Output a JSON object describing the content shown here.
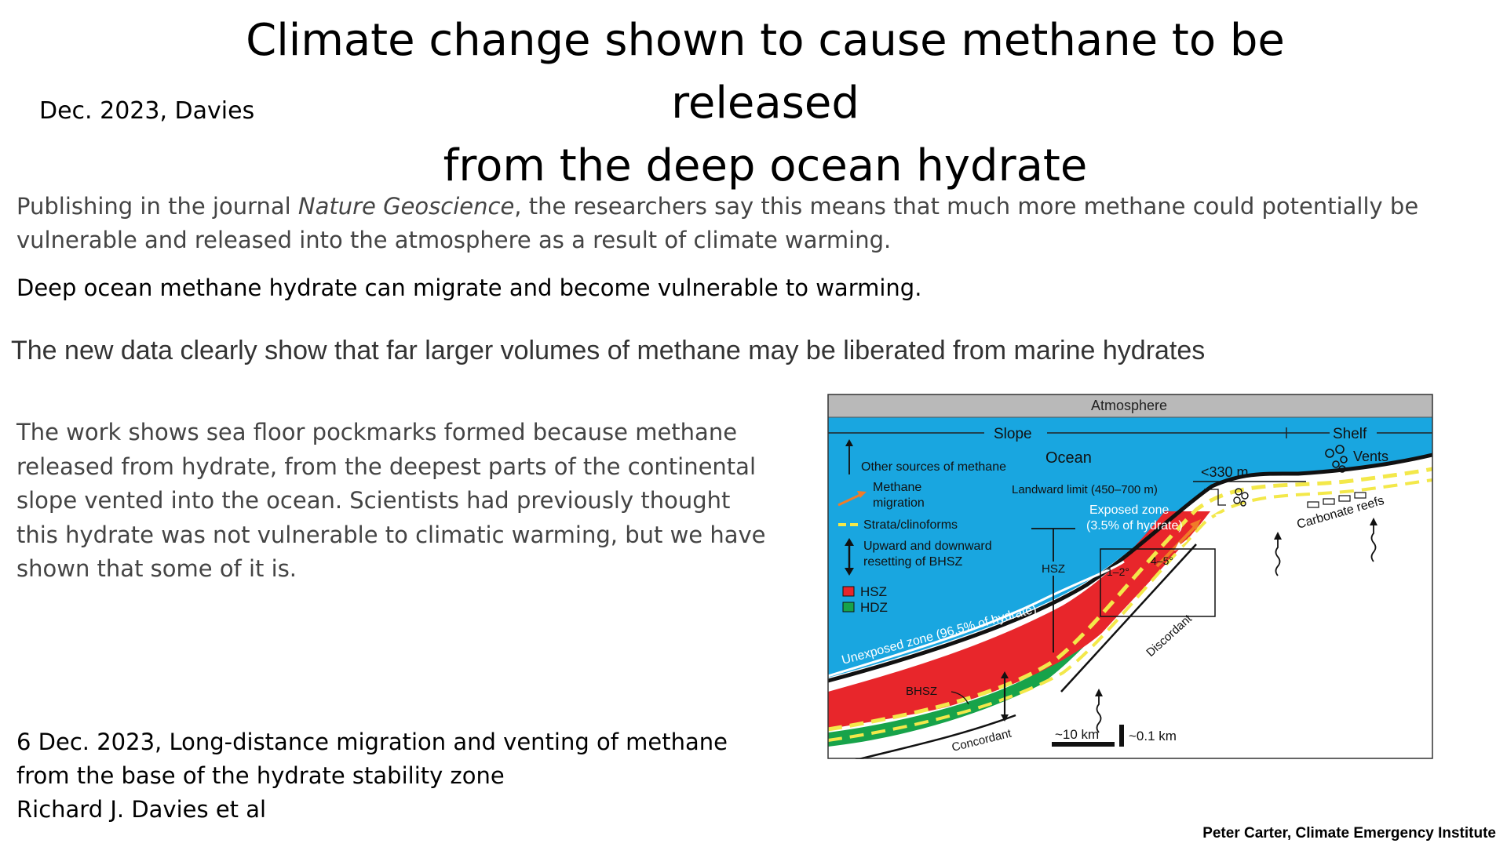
{
  "slide": {
    "title_line1": "Climate change shown to cause methane to be released",
    "title_line2": "from the deep ocean hydrate",
    "byline": "Dec. 2023, Davies",
    "para1_prefix": "Publishing in the journal ",
    "para1_journal": "Nature Geoscience",
    "para1_suffix": ", the researchers say this means that much more methane could potentially be vulnerable and released into the atmosphere as a result of climate warming.",
    "para2": "Deep ocean methane hydrate can migrate and become vulnerable to warming.",
    "para3": "The new data clearly show that far larger volumes of methane may be liberated from marine hydrates",
    "para4": "The work shows sea floor pockmarks  formed because methane released from hydrate, from the deepest parts of the continental slope vented into the ocean. Scientists had previously thought this hydrate was not vulnerable to climatic warming, but we have shown that some of it is.",
    "citation_line1": "6 Dec. 2023, Long-distance migration and venting of methane",
    "citation_line2": "from the base of the hydrate stability zone",
    "citation_line3": "Richard J. Davies et al",
    "credit": "Peter Carter, Climate Emergency Institute"
  },
  "diagram": {
    "atmosphere": "Atmosphere",
    "slope": "Slope",
    "shelf": "Shelf",
    "ocean": "Ocean",
    "vents": "Vents",
    "depth_330": "<330 m",
    "landward_limit": "Landward limit (450–700 m)",
    "exposed_zone_1": "Exposed zone",
    "exposed_zone_2": "(3.5% of hydrate)",
    "carbonate_reefs": "Carbonate reefs",
    "legend_other_sources": "Other sources of methane",
    "legend_methane_1": "Methane",
    "legend_methane_2": "migration",
    "legend_strata": "Strata/clinoforms",
    "legend_resetting_1": "Upward and downward",
    "legend_resetting_2": "resetting of BHSZ",
    "legend_hsz": "HSZ",
    "legend_hdz": "HDZ",
    "hsz_label": "HSZ",
    "angle_1": "1–2°",
    "angle_2": "4–5°",
    "unexposed_zone": "Unexposed zone (96.5% of hydrate)",
    "discordant": "Discordant",
    "bhsz": "BHSZ",
    "concordant": "Concordant",
    "scale_h": "~10 km",
    "scale_v": "~0.1 km",
    "colors": {
      "ocean": "#19a6e0",
      "atmosphere": "#b9b9b9",
      "hsz": "#e8262b",
      "hdz": "#17a34a",
      "strata": "#f3e84a",
      "migration": "#f07c28"
    }
  }
}
